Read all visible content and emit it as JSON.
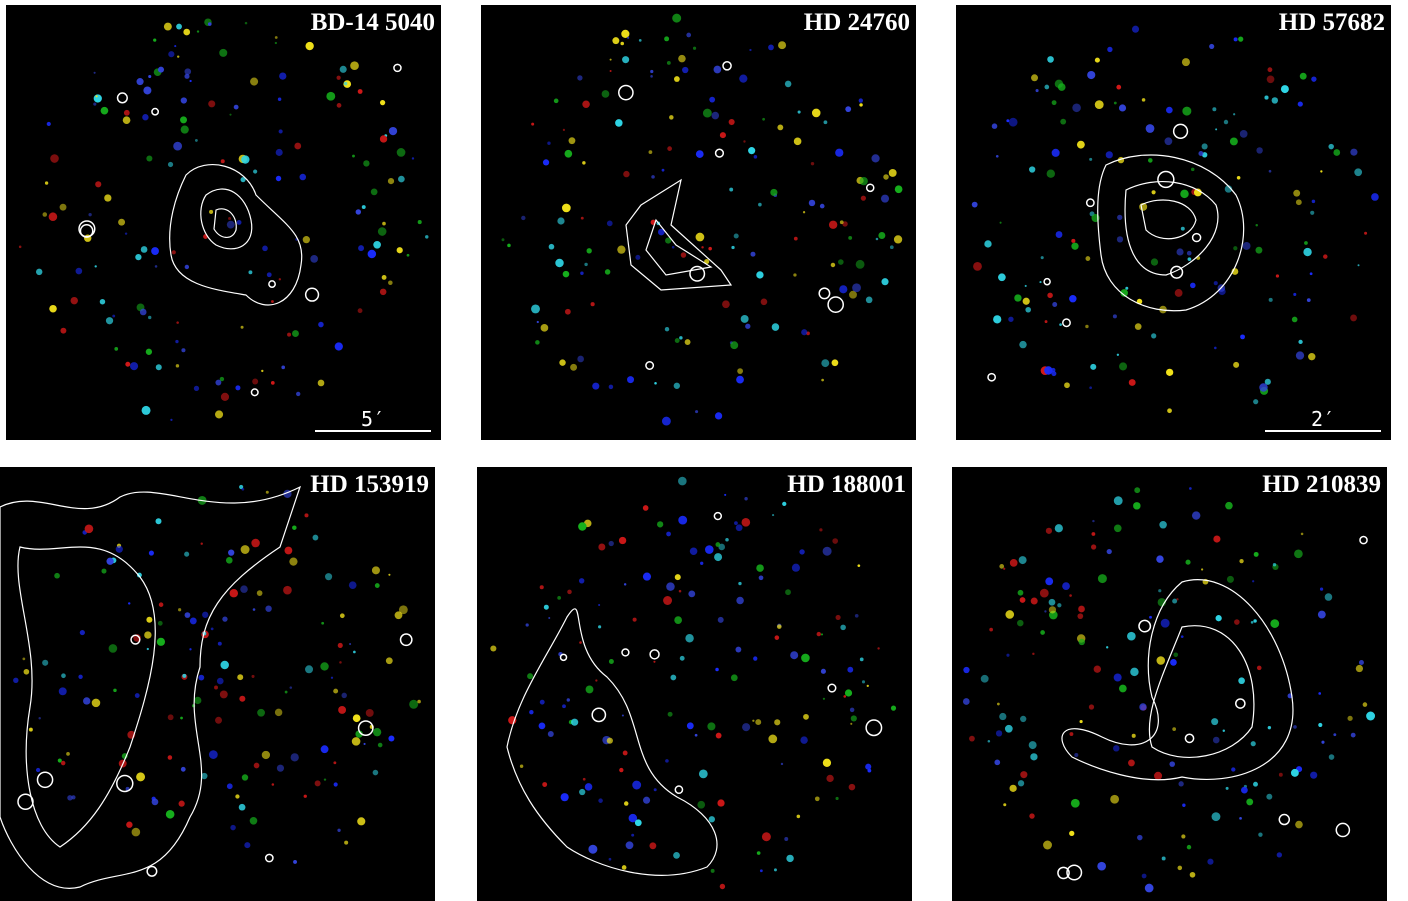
{
  "panels": [
    {
      "title": "BD-14 5040",
      "scale_label": "5′"
    },
    {
      "title": "HD 24760"
    },
    {
      "title": "HD 57682",
      "scale_label": "2′"
    },
    {
      "title": "HD 153919"
    },
    {
      "title": "HD 188001"
    },
    {
      "title": "HD 210839"
    }
  ]
}
